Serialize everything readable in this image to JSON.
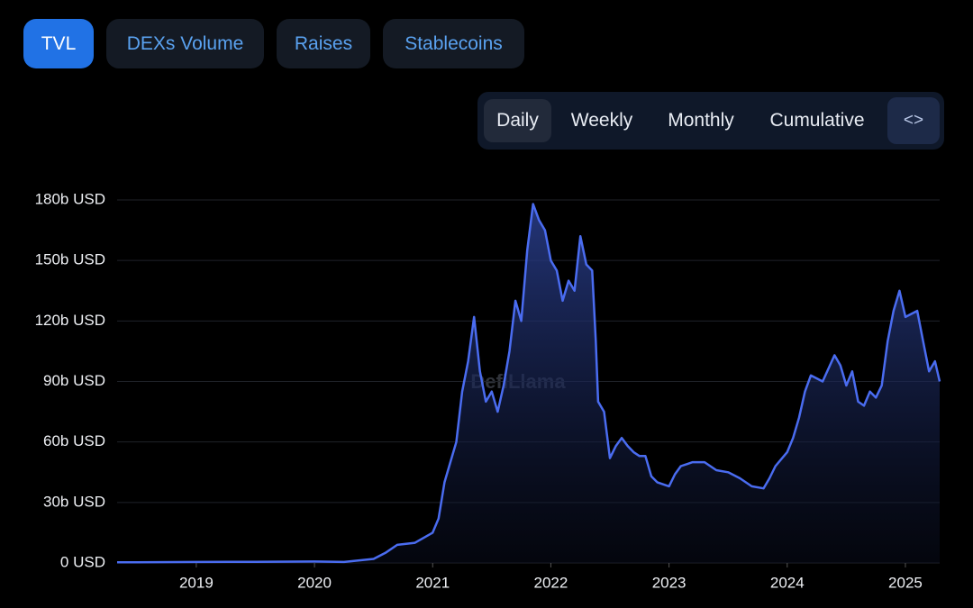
{
  "tabs": [
    "TVL",
    "DEXs Volume",
    "Raises",
    "Stablecoins"
  ],
  "periods": [
    "Daily",
    "Weekly",
    "Monthly",
    "Cumulative"
  ],
  "embed_icon": "<>",
  "watermark": "DefiLlama",
  "chart_data": {
    "type": "area",
    "color": "#4a6cf0",
    "grid": true,
    "x": [
      2018.33,
      2018.5,
      2019,
      2019.5,
      2020,
      2020.25,
      2020.5,
      2020.6,
      2020.7,
      2020.85,
      2021,
      2021.05,
      2021.1,
      2021.15,
      2021.2,
      2021.25,
      2021.3,
      2021.35,
      2021.4,
      2021.45,
      2021.5,
      2021.55,
      2021.6,
      2021.65,
      2021.7,
      2021.75,
      2021.8,
      2021.85,
      2021.9,
      2021.95,
      2022,
      2022.05,
      2022.1,
      2022.15,
      2022.2,
      2022.25,
      2022.3,
      2022.35,
      2022.38,
      2022.4,
      2022.45,
      2022.5,
      2022.55,
      2022.6,
      2022.65,
      2022.7,
      2022.75,
      2022.8,
      2022.85,
      2022.9,
      2023,
      2023.05,
      2023.1,
      2023.2,
      2023.3,
      2023.4,
      2023.5,
      2023.6,
      2023.7,
      2023.8,
      2023.85,
      2023.9,
      2024,
      2024.05,
      2024.1,
      2024.15,
      2024.2,
      2024.3,
      2024.4,
      2024.45,
      2024.5,
      2024.55,
      2024.6,
      2024.65,
      2024.7,
      2024.75,
      2024.8,
      2024.85,
      2024.9,
      2024.95,
      2025,
      2025.1,
      2025.15,
      2025.2,
      2025.25,
      2025.29
    ],
    "values": [
      0.3,
      0.3,
      0.5,
      0.6,
      0.7,
      0.5,
      2,
      5,
      9,
      10,
      15,
      22,
      40,
      50,
      60,
      85,
      100,
      122,
      95,
      80,
      85,
      75,
      88,
      105,
      130,
      120,
      155,
      178,
      170,
      165,
      150,
      145,
      130,
      140,
      135,
      162,
      148,
      145,
      110,
      80,
      75,
      52,
      58,
      62,
      58,
      55,
      53,
      53,
      43,
      40,
      38,
      44,
      48,
      50,
      50,
      46,
      45,
      42,
      38,
      37,
      42,
      48,
      55,
      62,
      72,
      85,
      93,
      90,
      103,
      98,
      88,
      95,
      80,
      78,
      85,
      82,
      88,
      110,
      125,
      135,
      122,
      125,
      110,
      95,
      100,
      90
    ],
    "xlim": [
      2018.33,
      2025.29
    ],
    "xticks": [
      2019,
      2020,
      2021,
      2022,
      2023,
      2024,
      2025
    ],
    "ylim": [
      0,
      180
    ],
    "yticks": [
      {
        "value": 0,
        "label": "0 USD"
      },
      {
        "value": 30,
        "label": "30b USD"
      },
      {
        "value": 60,
        "label": "60b USD"
      },
      {
        "value": 90,
        "label": "90b USD"
      },
      {
        "value": 120,
        "label": "120b USD"
      },
      {
        "value": 150,
        "label": "150b USD"
      },
      {
        "value": 180,
        "label": "180b USD"
      }
    ]
  }
}
